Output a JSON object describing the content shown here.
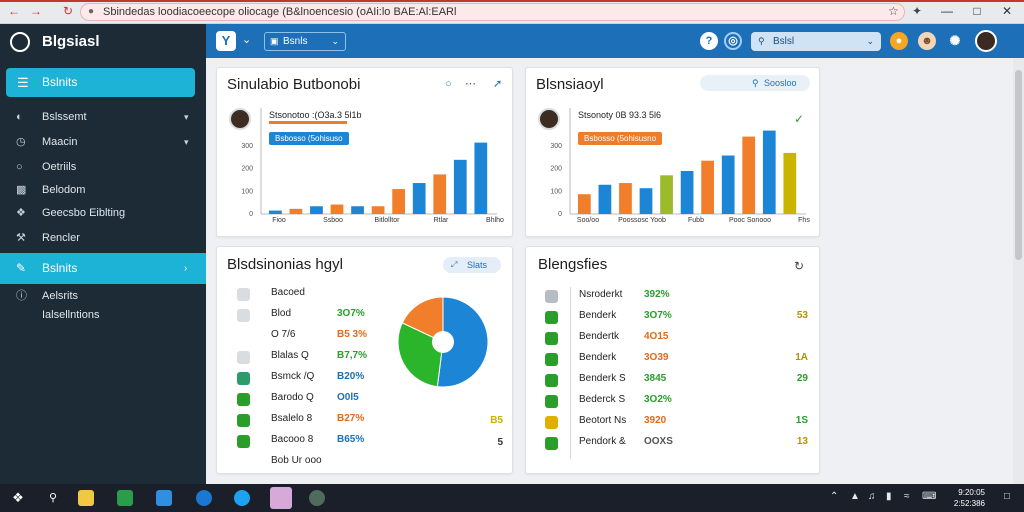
{
  "browser": {
    "address": "Sbindedas loodiacoeecope oliocage (B&lnoencesio (oAIi:lo BAE:Al:EARl",
    "lock_icon": "lock-icon",
    "nav_icons": [
      "back-icon",
      "forward-icon",
      "reload-icon"
    ],
    "right_icons": [
      "star-icon",
      "extension-icon"
    ],
    "window_controls": [
      "minimize-icon",
      "maximize-icon",
      "close-icon"
    ],
    "accent_color": "#c0392b"
  },
  "sidebar": {
    "brand": "Blgsiasl",
    "active_top": "Bslnits",
    "items": [
      {
        "label": "Bslssemt",
        "icon": "gauge-icon",
        "chevron": true
      },
      {
        "label": "Maacin",
        "icon": "clock-icon",
        "chevron": true
      },
      {
        "label": "Oetriils",
        "icon": "circle-icon",
        "chevron": false
      },
      {
        "label": "Belodom",
        "icon": "chart-icon",
        "chevron": false
      },
      {
        "label": "Geecsbo Eiblting",
        "icon": "puzzle-icon",
        "chevron": false
      },
      {
        "label": "Rencler",
        "icon": "wrench-icon",
        "chevron": false
      }
    ],
    "active_mid": "Bslnits",
    "bottom_items": [
      {
        "label": "Aelsrits",
        "icon": "info-icon"
      },
      {
        "label": "Ialsellntions",
        "icon": ""
      }
    ],
    "bg_color": "#1c2b36",
    "accent": "#1cb3d6"
  },
  "topbar": {
    "logo": "Y",
    "search_label": "Bsnls",
    "search2_label": "Bslsl",
    "bg_color": "#1d6fb8"
  },
  "card1": {
    "title": "Sinulabio Butbonobi",
    "subline": "Stsonotoo :(O3a.3 5l1b",
    "tag": "Bsbosso (5ohisuso",
    "y_ticks": [
      "300",
      "200",
      "100",
      "0"
    ],
    "x_labels": [
      "Fioo",
      "Ssboo",
      "Bitlolltor",
      "Rtlar",
      "Bhlho"
    ]
  },
  "card2": {
    "title": "Blsnsiaoyl",
    "search_label": "Soosloo",
    "subline": "Stsonoty 0B 93.3 5l6",
    "tag": "Bsbosso (5ohisusno",
    "y_ticks": [
      "300",
      "200",
      "100",
      "0"
    ],
    "x_labels": [
      "Soo/oo",
      "Poossosc Yoob",
      "Fubb",
      "Pooc Sonooo",
      "Fhs"
    ]
  },
  "card3": {
    "title": "Blsdsinonias hgyl",
    "pill_label": "Slats",
    "rows": [
      {
        "label": "Bacoed",
        "value": "",
        "color": "#555555",
        "icon": "cloud-icon"
      },
      {
        "label": "Blod",
        "value": "3O7%",
        "color": "#2a9d2a",
        "icon": "globe-icon"
      },
      {
        "label": "O 7/6",
        "value": "B5 3%",
        "color": "#e06a1a",
        "icon": ""
      },
      {
        "label": "Blalas   Q",
        "value": "B7,7%",
        "color": "#2a9d2a",
        "icon": "house-icon"
      },
      {
        "label": "Bsmck /Q",
        "value": "B20%",
        "color": "#1d6fb8",
        "icon": "refresh-icon"
      },
      {
        "label": "Barodo  Q",
        "value": "O0l5",
        "color": "#1d6fb8",
        "icon": "check-badge-icon"
      },
      {
        "label": "Bsalelo  8",
        "value": "B27%",
        "color": "#e06a1a",
        "icon": "check-box-icon"
      },
      {
        "label": "Bacooo  8",
        "value": "B65%",
        "color": "#1d6fb8",
        "icon": "check-box-icon"
      },
      {
        "label": "Bob  Ur  ooo",
        "value": "",
        "color": "#555555",
        "icon": ""
      }
    ],
    "side_numbers": [
      "B5",
      "5"
    ],
    "pie_slices": [
      {
        "value": 52,
        "color": "#1d85d6"
      },
      {
        "value": 30,
        "color": "#2bb52b"
      },
      {
        "value": 18,
        "color": "#f07e2a"
      }
    ]
  },
  "card4": {
    "title": "Blengsfies",
    "rows": [
      {
        "label": "Nsroderkt",
        "value": "392%",
        "right": "",
        "color": "#2a9d2a",
        "icon": "gray-dot-icon"
      },
      {
        "label": "Benderk",
        "value": "3O7%",
        "right": "53",
        "color": "#2a9d2a",
        "icon": "leaf-icon"
      },
      {
        "label": "Bendertk",
        "value": "4O15",
        "right": "",
        "color": "#e06a1a",
        "icon": "lock-icon"
      },
      {
        "label": "Benderk",
        "value": "3O39",
        "right": "1A",
        "color": "#e06a1a",
        "icon": "leaf-icon"
      },
      {
        "label": "Benderk S",
        "value": "3845",
        "right": "29",
        "color": "#2a9d2a",
        "icon": "check-box-icon"
      },
      {
        "label": "Bederck S",
        "value": "3O2%",
        "right": "",
        "color": "#2a9d2a",
        "icon": "leaf-icon"
      },
      {
        "label": "Beotort Ns",
        "value": "3920",
        "right": "1S",
        "color": "#e06a1a",
        "icon": "star-tile-icon"
      },
      {
        "label": "Pendork &",
        "value": "OOXS",
        "right": "13",
        "color": "#555555",
        "icon": "check-box-icon"
      }
    ]
  },
  "taskbar": {
    "clock_time": "9:20:05",
    "clock_date": "2:52:386"
  }
}
